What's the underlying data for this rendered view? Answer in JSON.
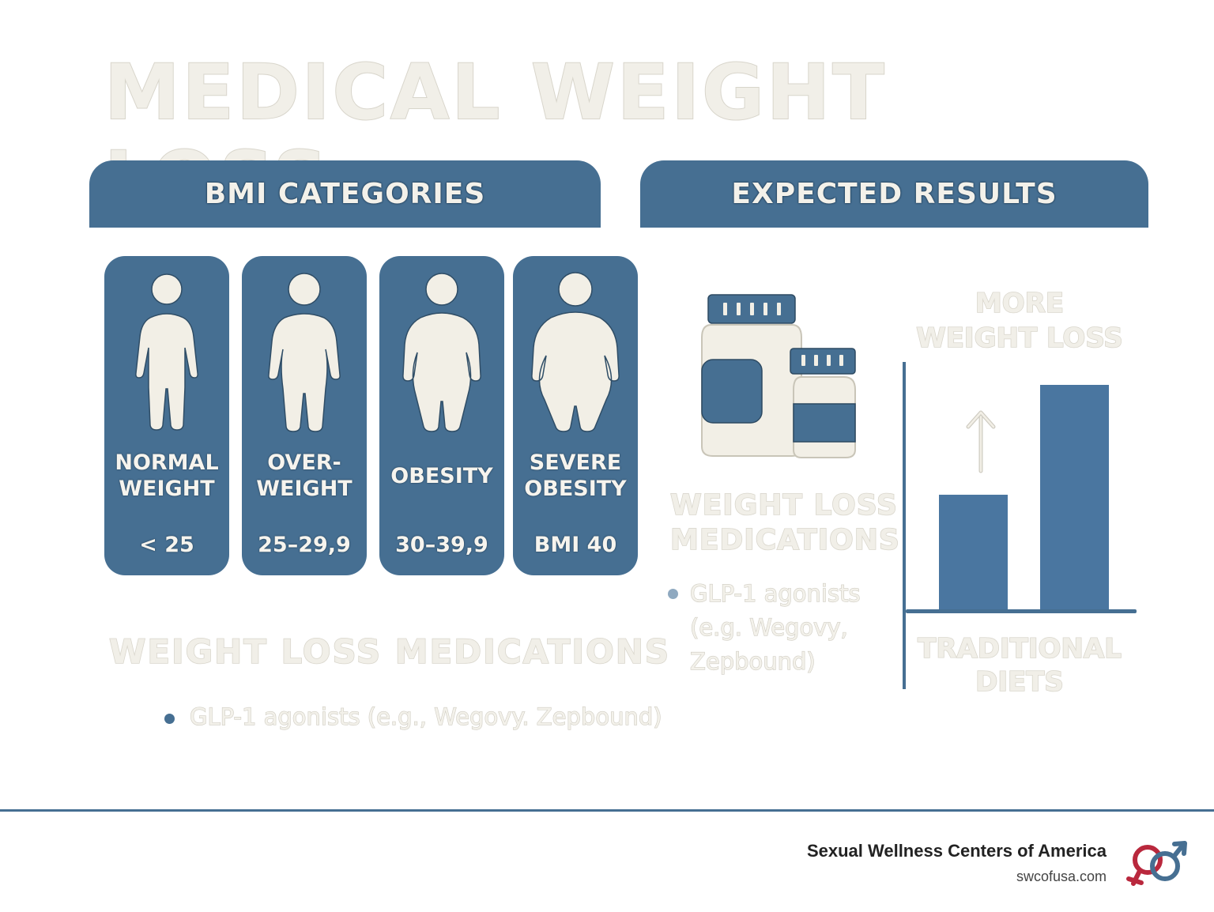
{
  "title": "MEDICAL WEIGHT LOSS",
  "left_panel": {
    "header": "BMI CATEGORIES",
    "categories": [
      {
        "label": "NORMAL\nWEIGHT",
        "range": "< 25"
      },
      {
        "label": "OVER-\nWEIGHT",
        "range": "25–29,9"
      },
      {
        "label": "OBESITY",
        "range": "30–39,9"
      },
      {
        "label": "SEVERE\nOBESITY",
        "range": "BMI 40"
      }
    ],
    "medications_heading": "WEIGHT LOSS MEDICATIONS",
    "bullet": "GLP-1 agonists (e.g., Wegovy. Zepbound)"
  },
  "right_panel": {
    "header": "EXPECTED RESULTS",
    "medications_heading": "WEIGHT LOSS\nMEDICATIONS",
    "bullet": "GLP-1 agonists\n(e.g.  Wegovy,\nZepbound)",
    "chart_top_label": "MORE\nWEIGHT LOSS",
    "chart_bottom_label": "TRADITIONAL\nDIETS"
  },
  "footer": {
    "brand": "Sexual Wellness Centers of America",
    "url": "swcofusa.com"
  },
  "colors": {
    "primary": "#466f92",
    "cream": "#f1efe8",
    "logo_red": "#b9283d"
  }
}
